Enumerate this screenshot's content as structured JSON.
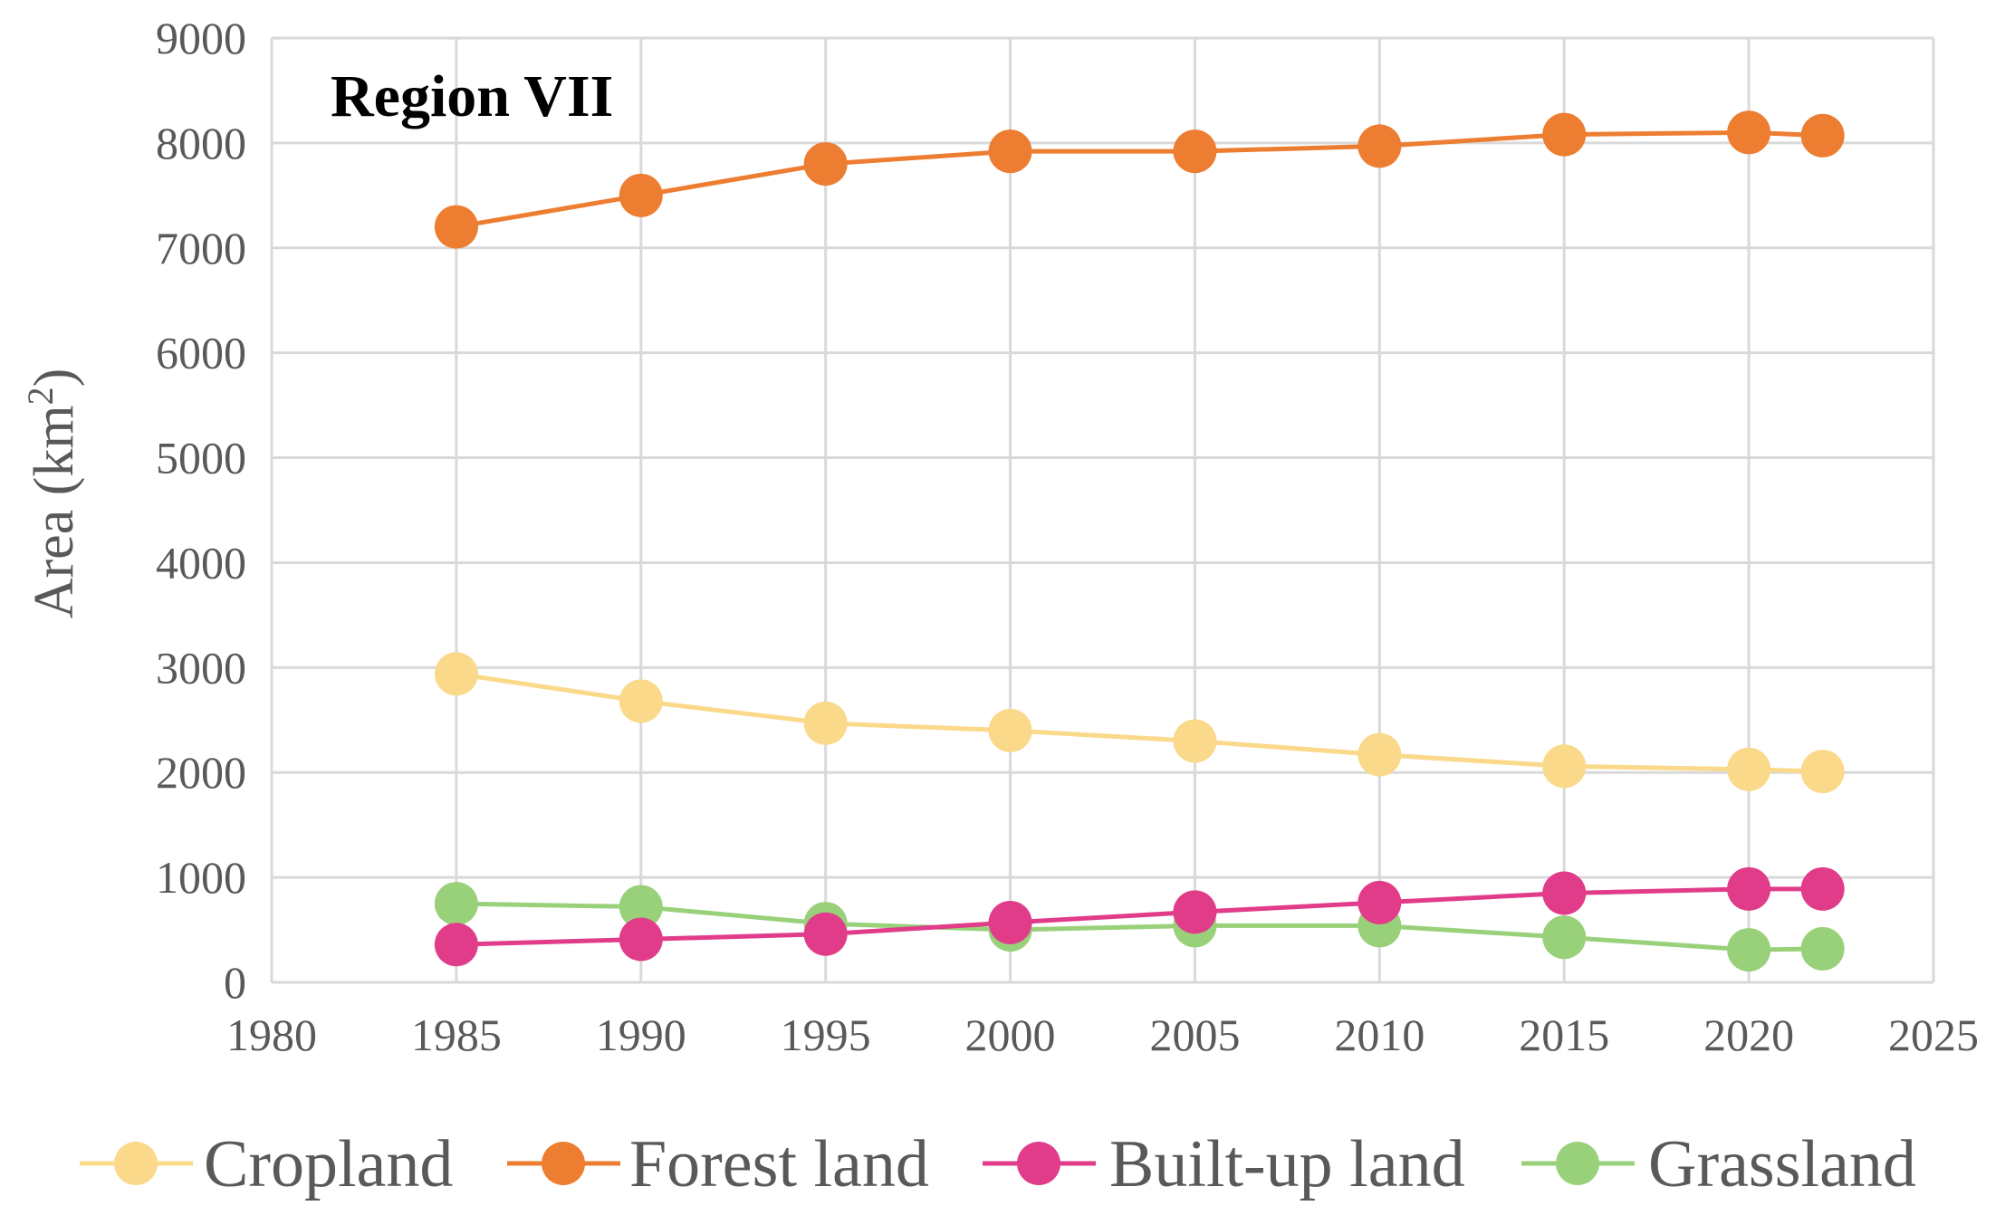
{
  "chart_data": {
    "type": "line",
    "title": "Region VII",
    "xlabel": "",
    "ylabel": "Area (km",
    "ylabel_superscript": "2",
    "ylabel_close": ")",
    "xlim": [
      1980,
      2025
    ],
    "ylim": [
      0,
      9000
    ],
    "x_ticks": [
      1980,
      1985,
      1990,
      1995,
      2000,
      2005,
      2010,
      2015,
      2020,
      2025
    ],
    "y_ticks": [
      0,
      1000,
      2000,
      3000,
      4000,
      5000,
      6000,
      7000,
      8000,
      9000
    ],
    "x": [
      1985,
      1990,
      1995,
      2000,
      2005,
      2010,
      2015,
      2020,
      2022
    ],
    "grid": true,
    "legend_position": "bottom",
    "series": [
      {
        "name": "Cropland",
        "color": "#fbd98a",
        "values": [
          2940,
          2680,
          2470,
          2400,
          2300,
          2170,
          2060,
          2030,
          2010
        ]
      },
      {
        "name": "Forest land",
        "color": "#ed7d31",
        "values": [
          7200,
          7500,
          7800,
          7920,
          7920,
          7970,
          8080,
          8100,
          8070
        ]
      },
      {
        "name": "Built-up land",
        "color": "#e03c8a",
        "values": [
          360,
          410,
          460,
          570,
          670,
          760,
          850,
          890,
          890
        ]
      },
      {
        "name": "Grassland",
        "color": "#99d17b",
        "values": [
          750,
          720,
          560,
          500,
          540,
          540,
          430,
          310,
          320
        ]
      }
    ]
  }
}
